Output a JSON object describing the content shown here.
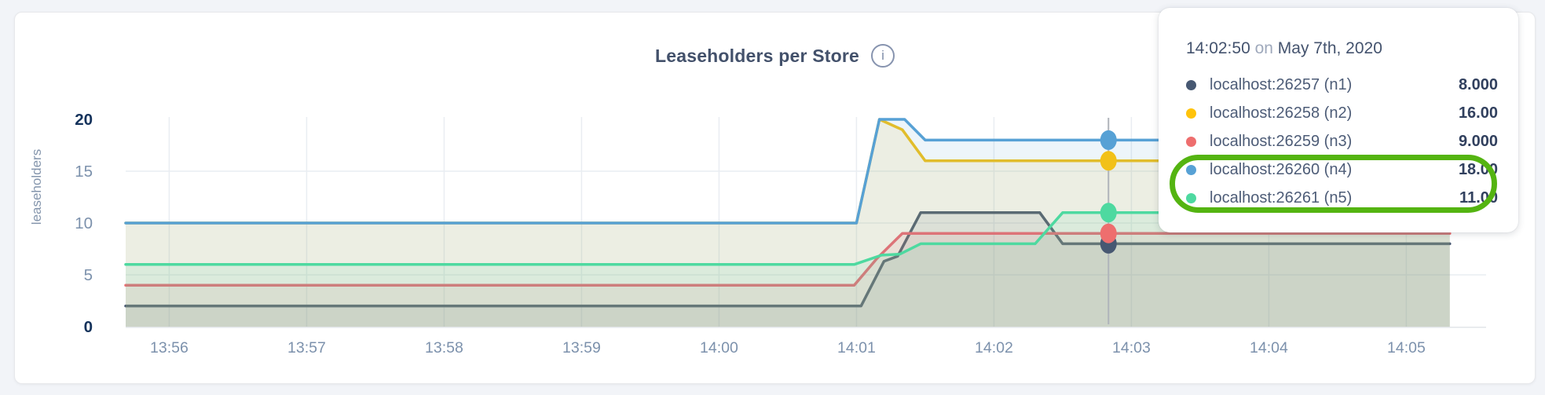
{
  "app": {
    "background_color": "#F2F4F8",
    "panel_border_color": "#E7E8EB"
  },
  "header": {
    "title": "Leaseholders per Store",
    "info_icon": "info-circle-icon"
  },
  "chart_data": {
    "type": "line",
    "title": "Leaseholders per Store",
    "xlabel": "",
    "ylabel": "leaseholders",
    "ylim": [
      0,
      20
    ],
    "grid": true,
    "legend_position": "tooltip-overlay",
    "y_ticks": [
      {
        "v": 0,
        "label": "0",
        "emphasized": true
      },
      {
        "v": 5,
        "label": "5",
        "emphasized": false
      },
      {
        "v": 10,
        "label": "10",
        "emphasized": false
      },
      {
        "v": 15,
        "label": "15",
        "emphasized": false
      },
      {
        "v": 20,
        "label": "20",
        "emphasized": true
      }
    ],
    "x_time_origin": "13:55:41",
    "x_ticks": [
      {
        "t": 19,
        "label": "13:56"
      },
      {
        "t": 79,
        "label": "13:57"
      },
      {
        "t": 139,
        "label": "13:58"
      },
      {
        "t": 199,
        "label": "13:59"
      },
      {
        "t": 259,
        "label": "14:00"
      },
      {
        "t": 319,
        "label": "14:01"
      },
      {
        "t": 379,
        "label": "14:02"
      },
      {
        "t": 439,
        "label": "14:03"
      },
      {
        "t": 499,
        "label": "14:04"
      },
      {
        "t": 559,
        "label": "14:05"
      }
    ],
    "series": [
      {
        "id": "n1",
        "name": "localhost:26257 (n1)",
        "color": "#475872",
        "points": [
          [
            0,
            2
          ],
          [
            321,
            2
          ],
          [
            331,
            6.3
          ],
          [
            337,
            6.8
          ],
          [
            347,
            11
          ],
          [
            399,
            11
          ],
          [
            409,
            8
          ],
          [
            578,
            8
          ]
        ]
      },
      {
        "id": "n2",
        "name": "localhost:26258 (n2)",
        "color": "#F2C118",
        "points": [
          [
            0,
            10
          ],
          [
            319,
            10
          ],
          [
            329,
            20
          ],
          [
            339,
            19
          ],
          [
            349,
            16
          ],
          [
            578,
            16
          ]
        ]
      },
      {
        "id": "n3",
        "name": "localhost:26259 (n3)",
        "color": "#EE6E6E",
        "points": [
          [
            0,
            4
          ],
          [
            318,
            4
          ],
          [
            328,
            6.6
          ],
          [
            339,
            9
          ],
          [
            578,
            9
          ]
        ]
      },
      {
        "id": "n4",
        "name": "localhost:26260 (n4)",
        "color": "#57A1D5",
        "points": [
          [
            0,
            10
          ],
          [
            319,
            10
          ],
          [
            329,
            20
          ],
          [
            340,
            20
          ],
          [
            349,
            18
          ],
          [
            578,
            18
          ]
        ]
      },
      {
        "id": "n5",
        "name": "localhost:26261 (n5)",
        "color": "#4ED9A0",
        "points": [
          [
            0,
            6
          ],
          [
            318,
            6
          ],
          [
            330,
            6.9
          ],
          [
            338,
            7
          ],
          [
            347,
            8
          ],
          [
            397,
            8
          ],
          [
            409,
            11
          ],
          [
            578,
            11
          ]
        ]
      }
    ],
    "hover": {
      "t": 429,
      "time_label": "14:02:50",
      "values": {
        "n1": 8,
        "n2": 16,
        "n3": 9,
        "n4": 18,
        "n5": 11
      }
    }
  },
  "tooltip": {
    "time": "14:02:50",
    "conjunction": "on",
    "date": "May 7th, 2020",
    "rows": [
      {
        "series": "n1",
        "label": "localhost:26257 (n1)",
        "value": "8.000",
        "color": "#475872"
      },
      {
        "series": "n2",
        "label": "localhost:26258 (n2)",
        "value": "16.00",
        "color": "#FFC30B"
      },
      {
        "series": "n3",
        "label": "localhost:26259 (n3)",
        "value": "9.000",
        "color": "#EE6E6E"
      },
      {
        "series": "n4",
        "label": "localhost:26260 (n4)",
        "value": "18.00",
        "color": "#57A1D5"
      },
      {
        "series": "n5",
        "label": "localhost:26261 (n5)",
        "value": "11.00",
        "color": "#4ED9A0"
      }
    ],
    "highlight": {
      "rows": [
        "n4",
        "n5"
      ],
      "ring_color": "#54B411"
    }
  }
}
